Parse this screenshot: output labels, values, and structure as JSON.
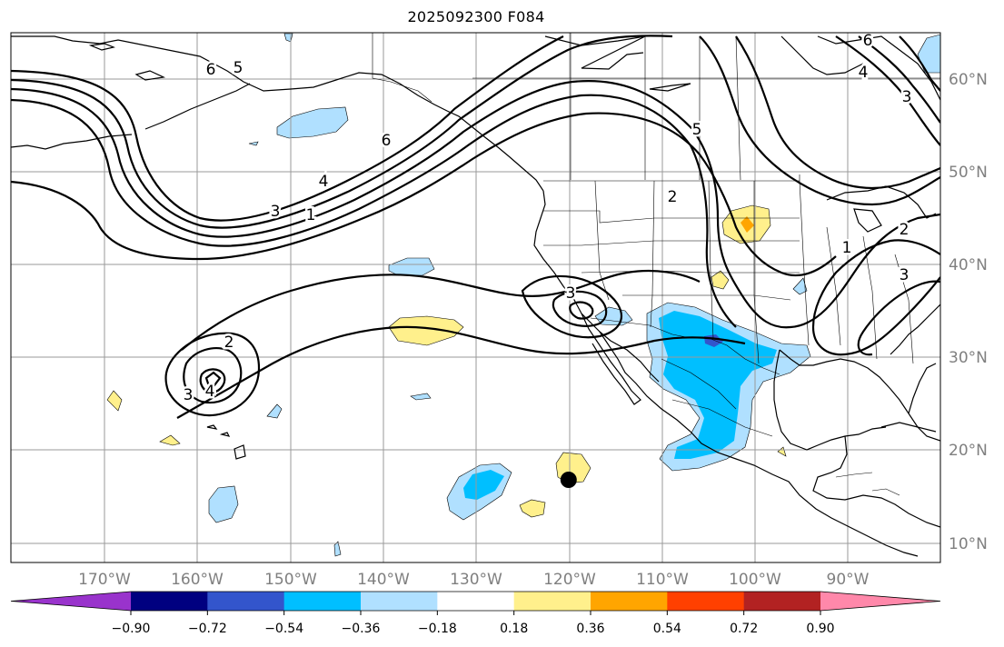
{
  "title": "2025092300 F084",
  "map": {
    "lat_labels": [
      "60°N",
      "50°N",
      "40°N",
      "30°N",
      "20°N",
      "10°N"
    ],
    "lon_labels": [
      "170°W",
      "160°W",
      "150°W",
      "140°W",
      "130°W",
      "120°W",
      "110°W",
      "100°W",
      "90°W"
    ],
    "contour_labels": [
      "6",
      "5",
      "6",
      "4",
      "3",
      "1",
      "6",
      "5",
      "2",
      "4",
      "3",
      "1",
      "2",
      "3",
      "3",
      "2",
      "4",
      "3"
    ],
    "marker": {
      "type": "point",
      "lon": -120,
      "lat": 16.8
    }
  },
  "colorbar": {
    "ticks": [
      "−0.90",
      "−0.72",
      "−0.54",
      "−0.36",
      "−0.18",
      "0.18",
      "0.36",
      "0.54",
      "0.72",
      "0.90"
    ],
    "colors": [
      "#9933cc",
      "#000080",
      "#3355cc",
      "#00bfff",
      "#b0e0ff",
      "#ffffff",
      "#fff08c",
      "#ffa500",
      "#ff4000",
      "#b22222",
      "#ff88aa"
    ]
  }
}
